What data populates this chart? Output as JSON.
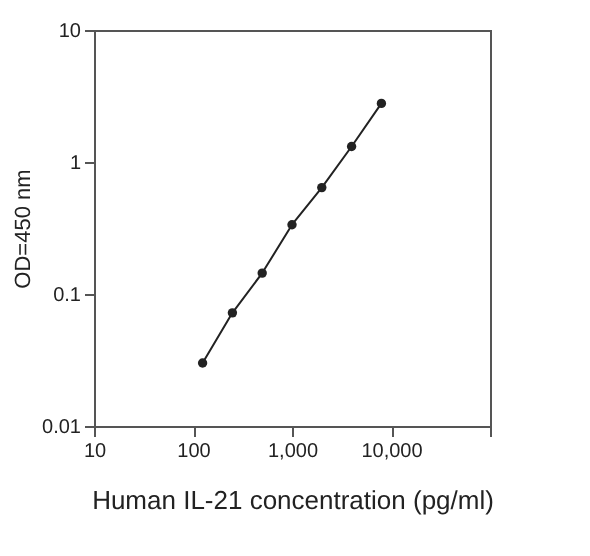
{
  "chart_data": {
    "type": "line",
    "xlabel": "Human IL-21 concentration (pg/ml)",
    "ylabel": "OD=450 nm",
    "x": [
      125,
      250,
      500,
      1000,
      2000,
      4000,
      8000
    ],
    "series": [
      {
        "color": "#222222",
        "values": [
          0.03,
          0.072,
          0.144,
          0.335,
          0.64,
          1.31,
          2.78
        ]
      }
    ],
    "log": "xy",
    "marker": "circle",
    "line_style": "solid",
    "grid": false,
    "xlim": [
      10,
      100000
    ],
    "xticks": [
      10,
      100,
      {
        "value": 1000,
        "label": "1,000"
      },
      {
        "value": 10000,
        "label": "10,000"
      },
      {
        "value": 100000,
        "label": null
      }
    ],
    "ylim": [
      0.01,
      10
    ],
    "yticks": [
      0.01,
      0.1,
      1,
      10
    ]
  }
}
